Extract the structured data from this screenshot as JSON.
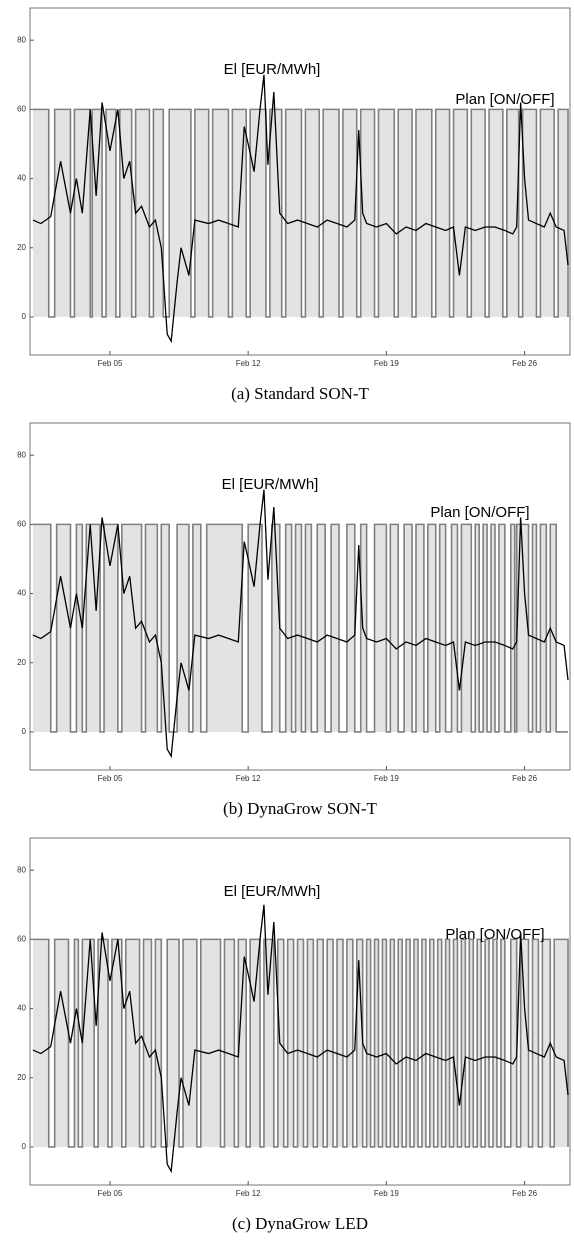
{
  "chart_data": [
    {
      "type": "line",
      "caption": "(a) Standard SON-T",
      "xlim": [
        0.95,
        28.3
      ],
      "ylim": [
        -11,
        89.3
      ],
      "xticks": [
        {
          "value": 5,
          "label": "Feb 05"
        },
        {
          "value": 12,
          "label": "Feb 12"
        },
        {
          "value": 19,
          "label": "Feb 19"
        },
        {
          "value": 26,
          "label": "Feb 26"
        }
      ],
      "yticks": [
        0,
        20,
        40,
        60,
        80
      ],
      "series": [
        {
          "name": "El [EUR/MWh]",
          "color": "#000000",
          "x": [
            1.1,
            1.5,
            2,
            2.5,
            3,
            3.3,
            3.6,
            4,
            4.3,
            4.6,
            5,
            5.4,
            5.7,
            6,
            6.3,
            6.6,
            7,
            7.3,
            7.6,
            7.9,
            8.1,
            8.4,
            8.6,
            9,
            9.3,
            10,
            10.5,
            11,
            11.5,
            11.8,
            12,
            12.3,
            12.6,
            12.8,
            13,
            13.3,
            13.6,
            14,
            14.5,
            15,
            15.5,
            16,
            16.5,
            17,
            17.4,
            17.6,
            17.8,
            18,
            18.5,
            19,
            19.5,
            20,
            20.5,
            21,
            21.5,
            22,
            22.4,
            22.7,
            23,
            23.5,
            24,
            24.5,
            25,
            25.4,
            25.6,
            25.8,
            26,
            26.2,
            26.6,
            27,
            27.3,
            27.6,
            28,
            28.2
          ],
          "values": [
            28,
            27,
            29,
            45,
            30,
            40,
            30,
            60,
            35,
            62,
            48,
            60,
            40,
            45,
            30,
            32,
            26,
            28,
            20,
            -5,
            -7,
            10,
            20,
            12,
            28,
            27,
            28,
            27,
            26,
            55,
            50,
            42,
            60,
            70,
            44,
            65,
            30,
            27,
            28,
            27,
            26,
            28,
            27,
            26,
            28,
            54,
            30,
            27,
            26,
            27,
            24,
            26,
            25,
            27,
            26,
            25,
            26,
            12,
            26,
            25,
            26,
            26,
            25,
            24,
            26,
            62,
            40,
            28,
            27,
            26,
            30,
            26,
            25,
            15
          ]
        },
        {
          "name": "Plan [ON/OFF]",
          "color": "#808080",
          "fill": "#e3e3e3",
          "step": true,
          "x": [
            1.1,
            1.9,
            2.2,
            3.0,
            3.2,
            4.0,
            4.1,
            4.6,
            4.8,
            5.3,
            5.5,
            6.1,
            6.3,
            7.0,
            7.2,
            7.7,
            8.0,
            9.1,
            9.3,
            10.0,
            10.2,
            11.0,
            11.2,
            11.9,
            12.1,
            12.9,
            13.1,
            13.7,
            13.9,
            14.7,
            14.9,
            15.6,
            15.8,
            16.6,
            16.8,
            17.5,
            17.7,
            18.4,
            18.6,
            19.4,
            19.6,
            20.3,
            20.5,
            21.3,
            21.5,
            22.2,
            22.4,
            23.1,
            23.3,
            24.0,
            24.2,
            24.9,
            25.1,
            25.7,
            25.9,
            26.6,
            26.8,
            27.5,
            27.7,
            28.2
          ],
          "values": [
            60,
            0,
            60,
            0,
            60,
            0,
            60,
            0,
            60,
            0,
            60,
            0,
            60,
            0,
            60,
            0,
            60,
            0,
            60,
            0,
            60,
            0,
            60,
            0,
            60,
            0,
            60,
            0,
            60,
            0,
            60,
            0,
            60,
            0,
            60,
            0,
            60,
            0,
            60,
            0,
            60,
            0,
            60,
            0,
            60,
            0,
            60,
            0,
            60,
            0,
            60,
            0,
            60,
            0,
            60,
            0,
            60,
            0,
            60,
            0
          ]
        }
      ]
    },
    {
      "type": "line",
      "caption": "(b) DynaGrow SON-T",
      "xlim": [
        0.95,
        28.3
      ],
      "ylim": [
        -11,
        89.3
      ],
      "xticks": [
        {
          "value": 5,
          "label": "Feb 05"
        },
        {
          "value": 12,
          "label": "Feb 12"
        },
        {
          "value": 19,
          "label": "Feb 19"
        },
        {
          "value": 26,
          "label": "Feb 26"
        }
      ],
      "yticks": [
        0,
        20,
        40,
        60,
        80
      ],
      "series": [
        {
          "name": "El [EUR/MWh]",
          "color": "#000000",
          "x": [
            1.1,
            1.5,
            2,
            2.5,
            3,
            3.3,
            3.6,
            4,
            4.3,
            4.6,
            5,
            5.4,
            5.7,
            6,
            6.3,
            6.6,
            7,
            7.3,
            7.6,
            7.9,
            8.1,
            8.4,
            8.6,
            9,
            9.3,
            10,
            10.5,
            11,
            11.5,
            11.8,
            12,
            12.3,
            12.6,
            12.8,
            13,
            13.3,
            13.6,
            14,
            14.5,
            15,
            15.5,
            16,
            16.5,
            17,
            17.4,
            17.6,
            17.8,
            18,
            18.5,
            19,
            19.5,
            20,
            20.5,
            21,
            21.5,
            22,
            22.4,
            22.7,
            23,
            23.5,
            24,
            24.5,
            25,
            25.4,
            25.6,
            25.8,
            26,
            26.2,
            26.6,
            27,
            27.3,
            27.6,
            28,
            28.2
          ],
          "values": [
            28,
            27,
            29,
            45,
            30,
            40,
            30,
            60,
            35,
            62,
            48,
            60,
            40,
            45,
            30,
            32,
            26,
            28,
            20,
            -5,
            -7,
            10,
            20,
            12,
            28,
            27,
            28,
            27,
            26,
            55,
            50,
            42,
            60,
            70,
            44,
            65,
            30,
            27,
            28,
            27,
            26,
            28,
            27,
            26,
            28,
            54,
            30,
            27,
            26,
            27,
            24,
            26,
            25,
            27,
            26,
            25,
            26,
            12,
            26,
            25,
            26,
            26,
            25,
            24,
            26,
            62,
            40,
            28,
            27,
            26,
            30,
            26,
            25,
            15
          ]
        },
        {
          "name": "Plan [ON/OFF]",
          "color": "#808080",
          "fill": "#e3e3e3",
          "step": true,
          "x": [
            1.1,
            2.0,
            2.3,
            3.0,
            3.3,
            3.6,
            3.8,
            4.5,
            4.7,
            5.4,
            5.6,
            6.6,
            6.8,
            7.4,
            7.6,
            8.0,
            8.4,
            9.0,
            9.2,
            9.6,
            9.9,
            11.7,
            12.0,
            12.7,
            13.2,
            13.6,
            13.9,
            14.2,
            14.4,
            14.7,
            14.9,
            15.2,
            15.5,
            15.9,
            16.2,
            16.6,
            17.0,
            17.4,
            17.7,
            18.0,
            18.4,
            19.0,
            19.2,
            19.6,
            19.9,
            20.3,
            20.5,
            20.9,
            21.1,
            21.5,
            21.7,
            22.0,
            22.3,
            22.6,
            22.8,
            23.3,
            23.5,
            23.7,
            23.9,
            24.1,
            24.3,
            24.5,
            24.7,
            25.0,
            25.3,
            25.5,
            25.6,
            26.2,
            26.4,
            26.6,
            26.8,
            27.1,
            27.3,
            27.6,
            28.2
          ],
          "values": [
            60,
            0,
            60,
            0,
            60,
            0,
            60,
            0,
            60,
            0,
            60,
            0,
            60,
            0,
            60,
            0,
            60,
            0,
            60,
            0,
            60,
            0,
            60,
            0,
            60,
            0,
            60,
            0,
            60,
            0,
            60,
            0,
            60,
            0,
            60,
            0,
            60,
            0,
            60,
            0,
            60,
            0,
            60,
            0,
            60,
            0,
            60,
            0,
            60,
            0,
            60,
            0,
            60,
            0,
            60,
            0,
            60,
            0,
            60,
            0,
            60,
            0,
            60,
            0,
            60,
            0,
            60,
            0,
            60,
            0,
            60,
            0,
            60,
            0,
            0
          ]
        }
      ]
    },
    {
      "type": "line",
      "caption": "(c) DynaGrow LED",
      "xlim": [
        0.95,
        28.3
      ],
      "ylim": [
        -11,
        89.3
      ],
      "xticks": [
        {
          "value": 5,
          "label": "Feb 05"
        },
        {
          "value": 12,
          "label": "Feb 12"
        },
        {
          "value": 19,
          "label": "Feb 19"
        },
        {
          "value": 26,
          "label": "Feb 26"
        }
      ],
      "yticks": [
        0,
        20,
        40,
        60,
        80
      ],
      "series": [
        {
          "name": "El [EUR/MWh]",
          "color": "#000000",
          "x": [
            1.1,
            1.5,
            2,
            2.5,
            3,
            3.3,
            3.6,
            4,
            4.3,
            4.6,
            5,
            5.4,
            5.7,
            6,
            6.3,
            6.6,
            7,
            7.3,
            7.6,
            7.9,
            8.1,
            8.4,
            8.6,
            9,
            9.3,
            10,
            10.5,
            11,
            11.5,
            11.8,
            12,
            12.3,
            12.6,
            12.8,
            13,
            13.3,
            13.6,
            14,
            14.5,
            15,
            15.5,
            16,
            16.5,
            17,
            17.4,
            17.6,
            17.8,
            18,
            18.5,
            19,
            19.5,
            20,
            20.5,
            21,
            21.5,
            22,
            22.4,
            22.7,
            23,
            23.5,
            24,
            24.5,
            25,
            25.4,
            25.6,
            25.8,
            26,
            26.2,
            26.6,
            27,
            27.3,
            27.6,
            28,
            28.2
          ],
          "values": [
            28,
            27,
            29,
            45,
            30,
            40,
            30,
            60,
            35,
            62,
            48,
            60,
            40,
            45,
            30,
            32,
            26,
            28,
            20,
            -5,
            -7,
            10,
            20,
            12,
            28,
            27,
            28,
            27,
            26,
            55,
            50,
            42,
            60,
            70,
            44,
            65,
            30,
            27,
            28,
            27,
            26,
            28,
            27,
            26,
            28,
            54,
            30,
            27,
            26,
            27,
            24,
            26,
            25,
            27,
            26,
            25,
            26,
            12,
            26,
            25,
            26,
            26,
            25,
            24,
            26,
            62,
            40,
            28,
            27,
            26,
            30,
            26,
            25,
            15
          ]
        },
        {
          "name": "Plan [ON/OFF]",
          "color": "#808080",
          "fill": "#e3e3e3",
          "step": true,
          "x": [
            1.1,
            1.9,
            2.2,
            2.9,
            3.2,
            3.4,
            3.6,
            4.2,
            4.4,
            4.9,
            5.1,
            5.6,
            5.8,
            6.5,
            6.7,
            7.1,
            7.3,
            7.6,
            7.9,
            8.5,
            8.7,
            9.4,
            9.6,
            10.6,
            10.8,
            11.3,
            11.5,
            11.9,
            12.1,
            12.6,
            12.8,
            13.3,
            13.5,
            13.8,
            14.0,
            14.3,
            14.5,
            14.8,
            15.0,
            15.3,
            15.5,
            15.8,
            16.0,
            16.3,
            16.5,
            16.8,
            17.0,
            17.3,
            17.5,
            17.8,
            18.0,
            18.2,
            18.4,
            18.6,
            18.8,
            19.0,
            19.2,
            19.4,
            19.6,
            19.8,
            20.0,
            20.2,
            20.4,
            20.6,
            20.8,
            21.0,
            21.2,
            21.4,
            21.6,
            21.8,
            22.0,
            22.2,
            22.4,
            22.6,
            22.8,
            23.0,
            23.2,
            23.4,
            23.6,
            23.8,
            24.0,
            24.2,
            24.4,
            24.6,
            24.8,
            25.0,
            25.3,
            25.6,
            25.8,
            26.2,
            26.4,
            26.7,
            26.9,
            27.3,
            27.5,
            28.2
          ],
          "values": [
            60,
            0,
            60,
            0,
            60,
            0,
            60,
            0,
            60,
            0,
            60,
            0,
            60,
            0,
            60,
            0,
            60,
            0,
            60,
            0,
            60,
            0,
            60,
            0,
            60,
            0,
            60,
            0,
            60,
            0,
            60,
            0,
            60,
            0,
            60,
            0,
            60,
            0,
            60,
            0,
            60,
            0,
            60,
            0,
            60,
            0,
            60,
            0,
            60,
            0,
            60,
            0,
            60,
            0,
            60,
            0,
            60,
            0,
            60,
            0,
            60,
            0,
            60,
            0,
            60,
            0,
            60,
            0,
            60,
            0,
            60,
            0,
            60,
            0,
            60,
            0,
            60,
            0,
            60,
            0,
            60,
            0,
            60,
            0,
            60,
            0,
            60,
            0,
            60,
            0,
            60,
            0,
            60,
            0,
            60,
            0
          ]
        }
      ]
    }
  ]
}
